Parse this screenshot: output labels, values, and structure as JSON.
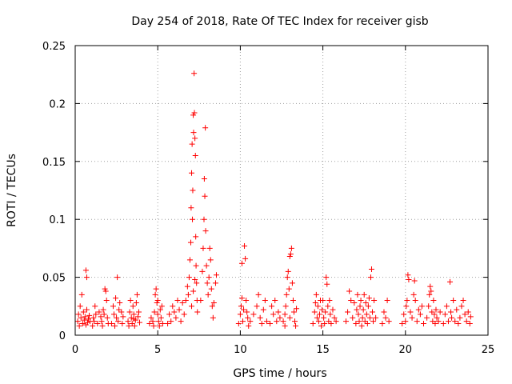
{
  "chart_data": {
    "type": "scatter",
    "title": "Day 254 of 2018, Rate Of TEC Index for receiver gisb",
    "xlabel": "GPS time / hours",
    "ylabel": "ROTI / TECUs",
    "xlim": [
      0,
      25
    ],
    "ylim": [
      0,
      0.25
    ],
    "x_ticks": [
      0,
      5,
      10,
      15,
      20,
      25
    ],
    "y_ticks": [
      0,
      0.05,
      0.1,
      0.15,
      0.2,
      0.25
    ],
    "x_tick_labels": [
      "0",
      "5",
      "10",
      "15",
      "20",
      "25"
    ],
    "y_tick_labels": [
      "0",
      "0.05",
      "0.1",
      "0.15",
      "0.2",
      "0.25"
    ],
    "grid": true,
    "marker": "plus",
    "marker_color": "#ff0000",
    "series": [
      {
        "name": "ROTI",
        "points": [
          [
            0.15,
            0.012
          ],
          [
            0.2,
            0.018
          ],
          [
            0.25,
            0.008
          ],
          [
            0.3,
            0.025
          ],
          [
            0.35,
            0.015
          ],
          [
            0.4,
            0.035
          ],
          [
            0.45,
            0.01
          ],
          [
            0.5,
            0.02
          ],
          [
            0.55,
            0.013
          ],
          [
            0.6,
            0.016
          ],
          [
            0.65,
            0.009
          ],
          [
            0.7,
            0.022
          ],
          [
            0.75,
            0.011
          ],
          [
            0.8,
            0.014
          ],
          [
            0.85,
            0.017
          ],
          [
            0.9,
            0.012
          ],
          [
            0.65,
            0.056
          ],
          [
            0.7,
            0.05
          ],
          [
            1.05,
            0.008
          ],
          [
            1.1,
            0.015
          ],
          [
            1.15,
            0.012
          ],
          [
            1.2,
            0.025
          ],
          [
            1.25,
            0.018
          ],
          [
            1.35,
            0.01
          ],
          [
            1.45,
            0.02
          ],
          [
            1.55,
            0.016
          ],
          [
            1.6,
            0.012
          ],
          [
            1.7,
            0.022
          ],
          [
            1.8,
            0.04
          ],
          [
            1.85,
            0.038
          ],
          [
            1.9,
            0.03
          ],
          [
            1.95,
            0.015
          ],
          [
            2.0,
            0.01
          ],
          [
            1.75,
            0.018
          ],
          [
            1.65,
            0.008
          ],
          [
            2.2,
            0.01
          ],
          [
            2.3,
            0.025
          ],
          [
            2.35,
            0.018
          ],
          [
            2.45,
            0.032
          ],
          [
            2.5,
            0.015
          ],
          [
            2.6,
            0.012
          ],
          [
            2.7,
            0.028
          ],
          [
            2.8,
            0.02
          ],
          [
            2.85,
            0.01
          ],
          [
            2.9,
            0.016
          ],
          [
            2.55,
            0.05
          ],
          [
            2.4,
            0.008
          ],
          [
            2.65,
            0.022
          ],
          [
            3.2,
            0.012
          ],
          [
            3.3,
            0.02
          ],
          [
            3.35,
            0.03
          ],
          [
            3.4,
            0.015
          ],
          [
            3.45,
            0.01
          ],
          [
            3.5,
            0.025
          ],
          [
            3.55,
            0.018
          ],
          [
            3.6,
            0.008
          ],
          [
            3.65,
            0.013
          ],
          [
            3.7,
            0.028
          ],
          [
            3.75,
            0.035
          ],
          [
            3.8,
            0.016
          ],
          [
            3.85,
            0.02
          ],
          [
            3.9,
            0.011
          ],
          [
            3.25,
            0.008
          ],
          [
            3.55,
            0.014
          ],
          [
            4.5,
            0.01
          ],
          [
            4.6,
            0.015
          ],
          [
            4.7,
            0.012
          ],
          [
            4.8,
            0.02
          ],
          [
            4.85,
            0.035
          ],
          [
            4.9,
            0.04
          ],
          [
            4.95,
            0.028
          ],
          [
            5.0,
            0.018
          ],
          [
            5.05,
            0.012
          ],
          [
            5.1,
            0.008
          ],
          [
            5.15,
            0.022
          ],
          [
            5.2,
            0.015
          ],
          [
            5.25,
            0.025
          ],
          [
            5.3,
            0.01
          ],
          [
            4.75,
            0.008
          ],
          [
            5.0,
            0.03
          ],
          [
            5.6,
            0.01
          ],
          [
            5.7,
            0.018
          ],
          [
            5.8,
            0.012
          ],
          [
            5.9,
            0.025
          ],
          [
            6.0,
            0.02
          ],
          [
            6.1,
            0.015
          ],
          [
            6.2,
            0.03
          ],
          [
            6.3,
            0.022
          ],
          [
            6.4,
            0.012
          ],
          [
            6.5,
            0.028
          ],
          [
            6.6,
            0.018
          ],
          [
            6.7,
            0.03
          ],
          [
            6.8,
            0.042
          ],
          [
            6.85,
            0.035
          ],
          [
            6.9,
            0.05
          ],
          [
            6.95,
            0.065
          ],
          [
            7.0,
            0.08
          ],
          [
            7.02,
            0.11
          ],
          [
            7.05,
            0.14
          ],
          [
            7.08,
            0.165
          ],
          [
            7.1,
            0.1
          ],
          [
            7.12,
            0.125
          ],
          [
            7.15,
            0.19
          ],
          [
            7.17,
            0.175
          ],
          [
            7.2,
            0.226
          ],
          [
            7.22,
            0.192
          ],
          [
            7.25,
            0.17
          ],
          [
            7.28,
            0.155
          ],
          [
            7.3,
            0.085
          ],
          [
            7.32,
            0.06
          ],
          [
            7.35,
            0.045
          ],
          [
            7.38,
            0.03
          ],
          [
            7.4,
            0.02
          ],
          [
            7.05,
            0.025
          ],
          [
            7.15,
            0.038
          ],
          [
            7.25,
            0.048
          ],
          [
            7.6,
            0.03
          ],
          [
            7.7,
            0.055
          ],
          [
            7.75,
            0.075
          ],
          [
            7.8,
            0.1
          ],
          [
            7.82,
            0.135
          ],
          [
            7.85,
            0.12
          ],
          [
            7.88,
            0.179
          ],
          [
            7.9,
            0.09
          ],
          [
            7.95,
            0.06
          ],
          [
            8.0,
            0.045
          ],
          [
            8.05,
            0.035
          ],
          [
            8.1,
            0.05
          ],
          [
            8.15,
            0.075
          ],
          [
            8.2,
            0.065
          ],
          [
            8.25,
            0.04
          ],
          [
            8.3,
            0.025
          ],
          [
            8.35,
            0.015
          ],
          [
            8.4,
            0.028
          ],
          [
            8.5,
            0.045
          ],
          [
            8.55,
            0.052
          ],
          [
            9.9,
            0.01
          ],
          [
            10.0,
            0.018
          ],
          [
            10.05,
            0.025
          ],
          [
            10.1,
            0.032
          ],
          [
            10.15,
            0.012
          ],
          [
            10.2,
            0.022
          ],
          [
            10.25,
            0.077
          ],
          [
            10.3,
            0.066
          ],
          [
            10.35,
            0.03
          ],
          [
            10.4,
            0.02
          ],
          [
            10.45,
            0.015
          ],
          [
            10.5,
            0.008
          ],
          [
            10.1,
            0.062
          ],
          [
            10.6,
            0.012
          ],
          [
            10.8,
            0.018
          ],
          [
            11.0,
            0.025
          ],
          [
            11.1,
            0.035
          ],
          [
            11.2,
            0.015
          ],
          [
            11.3,
            0.01
          ],
          [
            11.4,
            0.022
          ],
          [
            11.5,
            0.03
          ],
          [
            11.6,
            0.012
          ],
          [
            11.8,
            0.01
          ],
          [
            11.9,
            0.025
          ],
          [
            12.0,
            0.018
          ],
          [
            12.1,
            0.03
          ],
          [
            12.2,
            0.012
          ],
          [
            12.3,
            0.02
          ],
          [
            12.4,
            0.015
          ],
          [
            12.6,
            0.012
          ],
          [
            12.7,
            0.018
          ],
          [
            12.75,
            0.025
          ],
          [
            12.8,
            0.035
          ],
          [
            12.85,
            0.05
          ],
          [
            12.9,
            0.055
          ],
          [
            12.95,
            0.04
          ],
          [
            13.0,
            0.068
          ],
          [
            13.05,
            0.07
          ],
          [
            13.1,
            0.075
          ],
          [
            13.15,
            0.045
          ],
          [
            13.2,
            0.03
          ],
          [
            13.25,
            0.02
          ],
          [
            13.3,
            0.012
          ],
          [
            13.35,
            0.008
          ],
          [
            13.4,
            0.023
          ],
          [
            12.7,
            0.008
          ],
          [
            13.0,
            0.015
          ],
          [
            14.4,
            0.01
          ],
          [
            14.5,
            0.02
          ],
          [
            14.55,
            0.028
          ],
          [
            14.6,
            0.035
          ],
          [
            14.65,
            0.015
          ],
          [
            14.7,
            0.025
          ],
          [
            14.75,
            0.012
          ],
          [
            14.8,
            0.018
          ],
          [
            14.85,
            0.03
          ],
          [
            14.9,
            0.008
          ],
          [
            14.95,
            0.022
          ],
          [
            15.0,
            0.03
          ],
          [
            15.05,
            0.015
          ],
          [
            15.1,
            0.01
          ],
          [
            15.15,
            0.02
          ],
          [
            15.2,
            0.05
          ],
          [
            15.25,
            0.044
          ],
          [
            15.3,
            0.025
          ],
          [
            15.35,
            0.012
          ],
          [
            15.4,
            0.03
          ],
          [
            15.45,
            0.018
          ],
          [
            15.5,
            0.01
          ],
          [
            15.6,
            0.022
          ],
          [
            15.7,
            0.015
          ],
          [
            15.8,
            0.012
          ],
          [
            16.4,
            0.012
          ],
          [
            16.5,
            0.02
          ],
          [
            16.6,
            0.038
          ],
          [
            16.7,
            0.03
          ],
          [
            16.8,
            0.015
          ],
          [
            16.9,
            0.028
          ],
          [
            17.0,
            0.01
          ],
          [
            17.05,
            0.022
          ],
          [
            17.1,
            0.035
          ],
          [
            17.15,
            0.018
          ],
          [
            17.2,
            0.012
          ],
          [
            17.25,
            0.025
          ],
          [
            17.3,
            0.03
          ],
          [
            17.35,
            0.008
          ],
          [
            17.4,
            0.015
          ],
          [
            17.45,
            0.022
          ],
          [
            17.5,
            0.035
          ],
          [
            17.55,
            0.012
          ],
          [
            17.6,
            0.028
          ],
          [
            17.65,
            0.018
          ],
          [
            17.7,
            0.01
          ],
          [
            17.75,
            0.025
          ],
          [
            17.8,
            0.032
          ],
          [
            17.85,
            0.015
          ],
          [
            17.9,
            0.05
          ],
          [
            17.95,
            0.057
          ],
          [
            18.0,
            0.02
          ],
          [
            18.05,
            0.012
          ],
          [
            18.1,
            0.03
          ],
          [
            18.2,
            0.015
          ],
          [
            18.6,
            0.01
          ],
          [
            18.7,
            0.02
          ],
          [
            18.8,
            0.015
          ],
          [
            18.9,
            0.03
          ],
          [
            19.0,
            0.012
          ],
          [
            19.8,
            0.01
          ],
          [
            19.9,
            0.018
          ],
          [
            20.0,
            0.012
          ],
          [
            20.05,
            0.025
          ],
          [
            20.1,
            0.03
          ],
          [
            20.15,
            0.052
          ],
          [
            20.2,
            0.048
          ],
          [
            20.3,
            0.02
          ],
          [
            20.4,
            0.015
          ],
          [
            20.5,
            0.035
          ],
          [
            20.55,
            0.047
          ],
          [
            20.6,
            0.03
          ],
          [
            20.7,
            0.012
          ],
          [
            20.8,
            0.022
          ],
          [
            20.9,
            0.018
          ],
          [
            21.0,
            0.025
          ],
          [
            21.1,
            0.01
          ],
          [
            21.3,
            0.015
          ],
          [
            21.4,
            0.025
          ],
          [
            21.45,
            0.035
          ],
          [
            21.5,
            0.042
          ],
          [
            21.55,
            0.038
          ],
          [
            21.6,
            0.02
          ],
          [
            21.65,
            0.012
          ],
          [
            21.7,
            0.03
          ],
          [
            21.75,
            0.018
          ],
          [
            21.8,
            0.01
          ],
          [
            21.85,
            0.022
          ],
          [
            21.9,
            0.015
          ],
          [
            22.0,
            0.012
          ],
          [
            22.1,
            0.02
          ],
          [
            22.3,
            0.01
          ],
          [
            22.4,
            0.018
          ],
          [
            22.5,
            0.025
          ],
          [
            22.6,
            0.012
          ],
          [
            22.7,
            0.046
          ],
          [
            22.75,
            0.02
          ],
          [
            22.8,
            0.015
          ],
          [
            22.9,
            0.03
          ],
          [
            23.0,
            0.012
          ],
          [
            23.1,
            0.022
          ],
          [
            23.2,
            0.01
          ],
          [
            23.3,
            0.015
          ],
          [
            23.4,
            0.025
          ],
          [
            23.5,
            0.03
          ],
          [
            23.6,
            0.018
          ],
          [
            23.7,
            0.012
          ],
          [
            23.8,
            0.02
          ],
          [
            23.9,
            0.01
          ],
          [
            23.95,
            0.016
          ]
        ]
      }
    ]
  }
}
